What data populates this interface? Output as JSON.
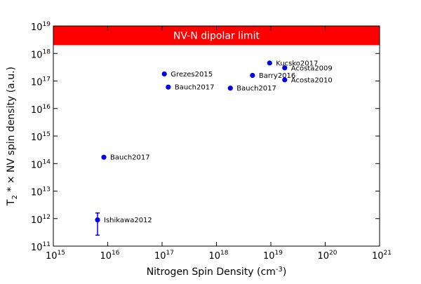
{
  "chart_data": {
    "type": "scatter",
    "xlabel": {
      "text": "Nitrogen Spin Density (cm",
      "sup": "-3",
      "suffix": ")"
    },
    "ylabel": {
      "prefix": "T",
      "sub": "2",
      "text": " * × NV spin density (a.u.)"
    },
    "x_scale": "log",
    "y_scale": "log",
    "xlim": [
      1000000000000000.0,
      1e+21
    ],
    "ylim": [
      100000000000.0,
      1e+19
    ],
    "x_ticks": [
      {
        "base": "10",
        "exp": "15",
        "value": 1000000000000000.0
      },
      {
        "base": "10",
        "exp": "16",
        "value": 1e+16
      },
      {
        "base": "10",
        "exp": "17",
        "value": 1e+17
      },
      {
        "base": "10",
        "exp": "18",
        "value": 1e+18
      },
      {
        "base": "10",
        "exp": "19",
        "value": 1e+19
      },
      {
        "base": "10",
        "exp": "20",
        "value": 1e+20
      },
      {
        "base": "10",
        "exp": "21",
        "value": 1e+21
      }
    ],
    "y_ticks": [
      {
        "base": "10",
        "exp": "11",
        "value": 100000000000.0
      },
      {
        "base": "10",
        "exp": "12",
        "value": 1000000000000.0
      },
      {
        "base": "10",
        "exp": "13",
        "value": 10000000000000.0
      },
      {
        "base": "10",
        "exp": "14",
        "value": 100000000000000.0
      },
      {
        "base": "10",
        "exp": "15",
        "value": 1000000000000000.0
      },
      {
        "base": "10",
        "exp": "16",
        "value": 1e+16
      },
      {
        "base": "10",
        "exp": "17",
        "value": 1e+17
      },
      {
        "base": "10",
        "exp": "18",
        "value": 1e+18
      },
      {
        "base": "10",
        "exp": "19",
        "value": 1e+19
      }
    ],
    "band": {
      "label": "NV-N dipolar limit",
      "y_from": 2e+18,
      "y_to": 1e+19,
      "color": "#ff0000"
    },
    "points": [
      {
        "label": "Grezes2015",
        "x": 1.1e+17,
        "y": 1.8e+17
      },
      {
        "label": "Bauch2017",
        "x": 1.3e+17,
        "y": 6e+16
      },
      {
        "label": "Bauch2017",
        "x": 1.8e+18,
        "y": 5.5e+16
      },
      {
        "label": "Kucsko2017",
        "x": 9.5e+18,
        "y": 4.5e+17
      },
      {
        "label": "Barry2016",
        "x": 4.6e+18,
        "y": 1.6e+17
      },
      {
        "label": "Acosta2009",
        "x": 1.8e+19,
        "y": 3e+17
      },
      {
        "label": "Acosta2010",
        "x": 1.8e+19,
        "y": 1.1e+17
      },
      {
        "label": "Bauch2017",
        "x": 8500000000000000.0,
        "y": 170000000000000.0
      },
      {
        "label": "Ishikawa2012",
        "x": 6500000000000000.0,
        "y": 900000000000.0,
        "y_err_low": 250000000000.0,
        "y_err_high": 1600000000000.0
      }
    ],
    "point_color": "#0000ee",
    "grid": false,
    "legend": "none"
  }
}
